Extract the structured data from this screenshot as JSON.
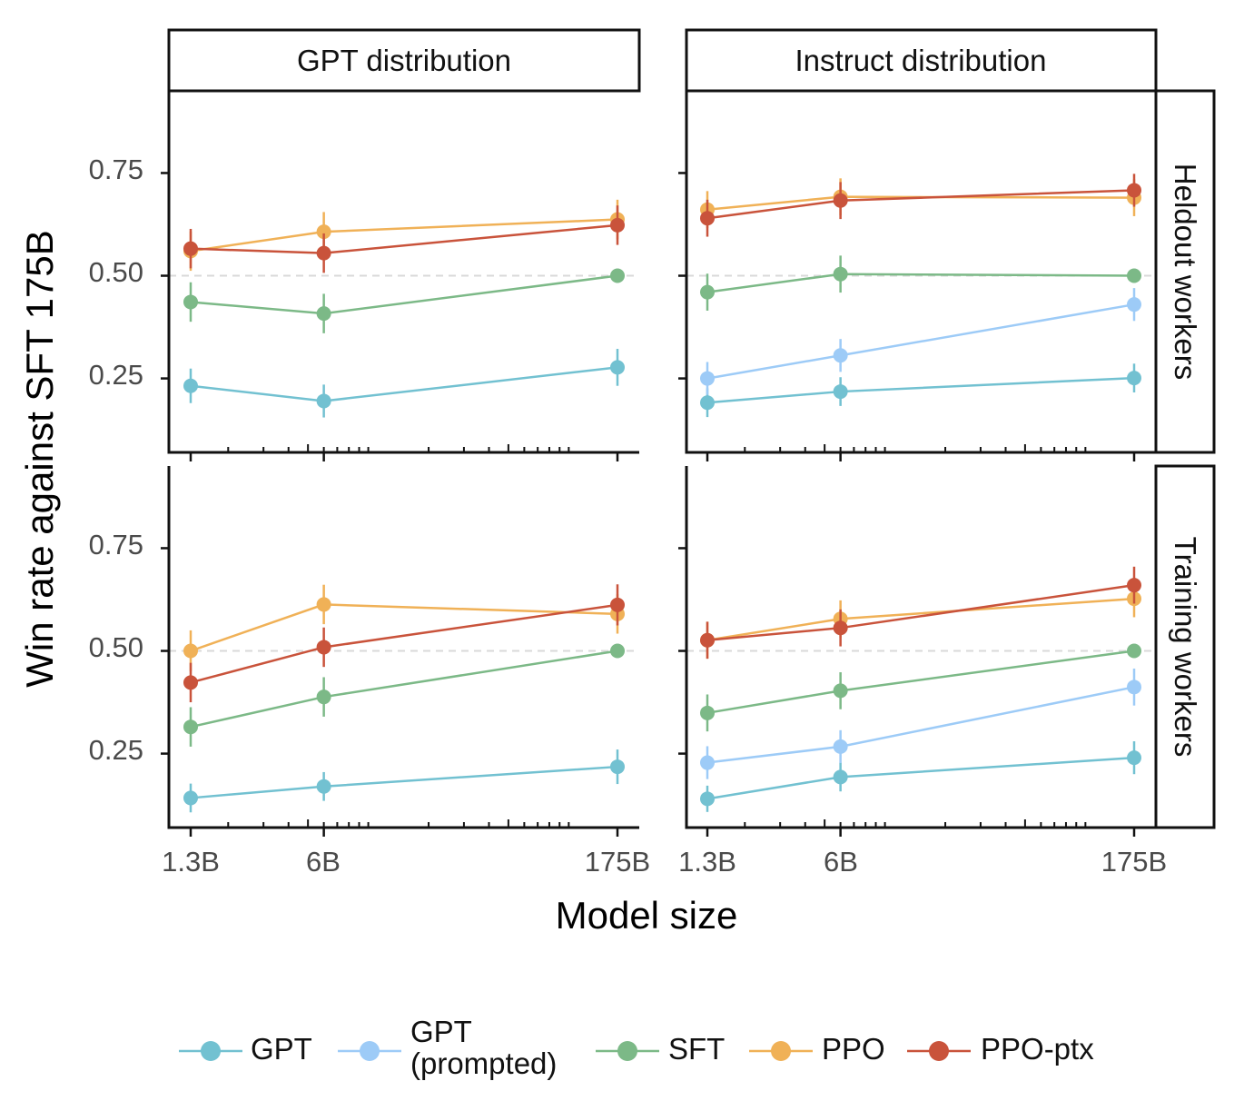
{
  "chart_data": {
    "type": "line",
    "xlabel": "Model size",
    "ylabel": "Win rate against SFT 175B",
    "x_categories": [
      "1.3B",
      "6B",
      "175B"
    ],
    "x_values": [
      1.3,
      6,
      175
    ],
    "x_scale": "log",
    "ylim": [
      0.07,
      0.95
    ],
    "yticks": [
      0.25,
      0.5,
      0.75
    ],
    "ytick_labels": [
      "0.25",
      "0.50",
      "0.75"
    ],
    "reference_line": 0.5,
    "column_strips": [
      "GPT distribution",
      "Instruct distribution"
    ],
    "row_strips": [
      "Heldout workers",
      "Training workers"
    ],
    "series_styles": [
      {
        "name": "GPT",
        "color": "#72c1d1"
      },
      {
        "name": "GPT (prompted)",
        "color": "#9dcbf7"
      },
      {
        "name": "SFT",
        "color": "#7cb987"
      },
      {
        "name": "PPO",
        "color": "#f0b157"
      },
      {
        "name": "PPO-ptx",
        "color": "#c9533b"
      }
    ],
    "legend": {
      "position": "bottom",
      "items": [
        {
          "key": "GPT",
          "lines": [
            "GPT"
          ]
        },
        {
          "key": "GPT (prompted)",
          "lines": [
            "GPT",
            "(prompted)"
          ]
        },
        {
          "key": "SFT",
          "lines": [
            "SFT"
          ]
        },
        {
          "key": "PPO",
          "lines": [
            "PPO"
          ]
        },
        {
          "key": "PPO-ptx",
          "lines": [
            "PPO-ptx"
          ]
        }
      ]
    },
    "panels": [
      {
        "col": "GPT distribution",
        "row": "Heldout workers",
        "series": [
          {
            "name": "GPT",
            "values": [
              0.232,
              0.195,
              0.277
            ],
            "errors": [
              0.042,
              0.04,
              0.045
            ]
          },
          {
            "name": "SFT",
            "values": [
              0.436,
              0.408,
              0.5
            ],
            "errors": [
              0.048,
              0.048,
              0.0
            ]
          },
          {
            "name": "PPO",
            "values": [
              0.56,
              0.607,
              0.637
            ],
            "errors": [
              0.048,
              0.048,
              0.048
            ]
          },
          {
            "name": "PPO-ptx",
            "values": [
              0.566,
              0.555,
              0.623
            ],
            "errors": [
              0.048,
              0.048,
              0.048
            ]
          }
        ]
      },
      {
        "col": "Instruct distribution",
        "row": "Heldout workers",
        "series": [
          {
            "name": "GPT",
            "values": [
              0.191,
              0.218,
              0.251
            ],
            "errors": [
              0.035,
              0.035,
              0.035
            ]
          },
          {
            "name": "GPT (prompted)",
            "values": [
              0.25,
              0.306,
              0.43
            ],
            "errors": [
              0.04,
              0.04,
              0.04
            ]
          },
          {
            "name": "SFT",
            "values": [
              0.46,
              0.504,
              0.5
            ],
            "errors": [
              0.045,
              0.045,
              0.0
            ]
          },
          {
            "name": "PPO",
            "values": [
              0.661,
              0.692,
              0.69
            ],
            "errors": [
              0.045,
              0.045,
              0.045
            ]
          },
          {
            "name": "PPO-ptx",
            "values": [
              0.64,
              0.683,
              0.708
            ],
            "errors": [
              0.045,
              0.045,
              0.04
            ]
          }
        ]
      },
      {
        "col": "GPT distribution",
        "row": "Training workers",
        "series": [
          {
            "name": "GPT",
            "values": [
              0.142,
              0.17,
              0.218
            ],
            "errors": [
              0.035,
              0.035,
              0.042
            ]
          },
          {
            "name": "SFT",
            "values": [
              0.315,
              0.388,
              0.5
            ],
            "errors": [
              0.048,
              0.048,
              0.0
            ]
          },
          {
            "name": "PPO",
            "values": [
              0.5,
              0.613,
              0.59
            ],
            "errors": [
              0.05,
              0.048,
              0.048
            ]
          },
          {
            "name": "PPO-ptx",
            "values": [
              0.423,
              0.509,
              0.612
            ],
            "errors": [
              0.048,
              0.048,
              0.05
            ]
          }
        ]
      },
      {
        "col": "Instruct distribution",
        "row": "Training workers",
        "series": [
          {
            "name": "GPT",
            "values": [
              0.14,
              0.193,
              0.24
            ],
            "errors": [
              0.032,
              0.035,
              0.04
            ]
          },
          {
            "name": "GPT (prompted)",
            "values": [
              0.228,
              0.267,
              0.412
            ],
            "errors": [
              0.04,
              0.04,
              0.045
            ]
          },
          {
            "name": "SFT",
            "values": [
              0.349,
              0.403,
              0.5
            ],
            "errors": [
              0.045,
              0.045,
              0.0
            ]
          },
          {
            "name": "PPO",
            "values": [
              0.526,
              0.578,
              0.627
            ],
            "errors": [
              0.045,
              0.045,
              0.045
            ]
          },
          {
            "name": "PPO-ptx",
            "values": [
              0.526,
              0.556,
              0.66
            ],
            "errors": [
              0.045,
              0.045,
              0.045
            ]
          }
        ]
      }
    ]
  }
}
